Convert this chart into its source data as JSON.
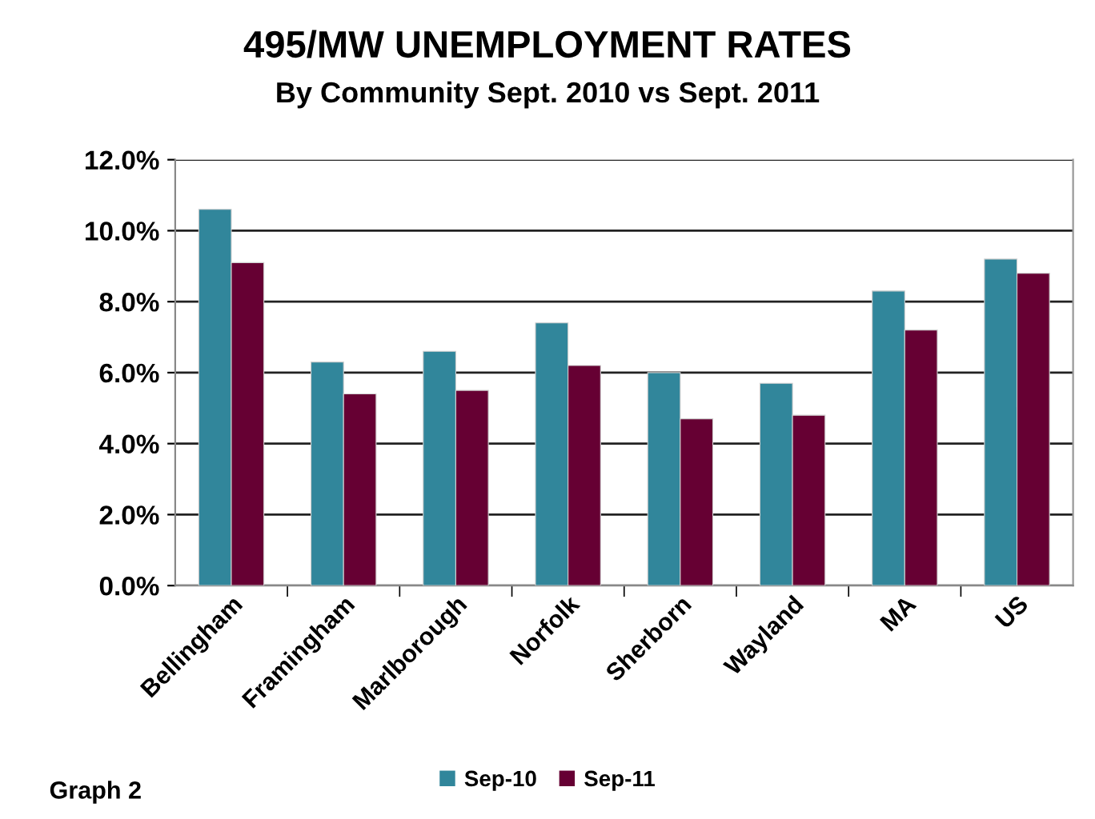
{
  "chart_data": {
    "type": "bar",
    "title": "495/MW UNEMPLOYMENT RATES",
    "subtitle": "By Community Sept. 2010 vs Sept. 2011",
    "categories": [
      "Bellingham",
      "Framingham",
      "Marlborough",
      "Norfolk",
      "Sherborn",
      "Wayland",
      "MA",
      "US"
    ],
    "series": [
      {
        "name": "Sep-10",
        "color": "#31869b",
        "values": [
          10.6,
          6.3,
          6.6,
          7.4,
          6.0,
          5.7,
          8.3,
          9.2
        ]
      },
      {
        "name": "Sep-11",
        "color": "#660033",
        "values": [
          9.1,
          5.4,
          5.5,
          6.2,
          4.7,
          4.8,
          7.2,
          8.8
        ]
      }
    ],
    "ylim": [
      0,
      12
    ],
    "yticks": [
      {
        "value": 0,
        "label": "0.0%"
      },
      {
        "value": 2,
        "label": "2.0%"
      },
      {
        "value": 4,
        "label": "4.0%"
      },
      {
        "value": 6,
        "label": "6.0%"
      },
      {
        "value": 8,
        "label": "8.0%"
      },
      {
        "value": 10,
        "label": "10.0%"
      },
      {
        "value": 12,
        "label": "12.0%"
      }
    ],
    "grid": "y",
    "legend": "bottom",
    "annotations": [
      "Graph 2"
    ]
  }
}
